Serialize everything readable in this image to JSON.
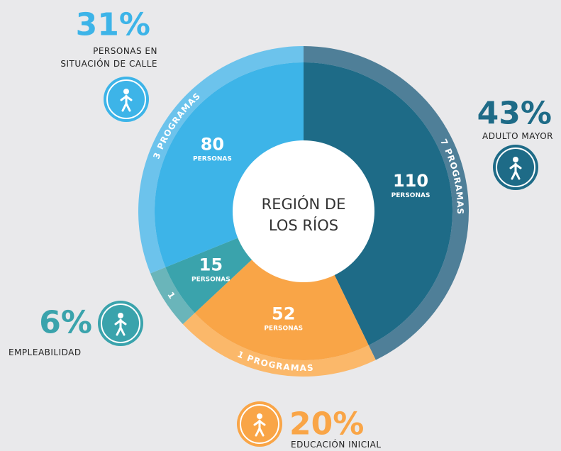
{
  "chart_data": {
    "type": "donut",
    "title": "REGIÓN DE LOS RÍOS",
    "categories": [
      "ADULTO MAYOR",
      "EDUCACIÓN INICIAL",
      "EMPLEABILIDAD",
      "PERSONAS EN SITUACIÓN DE CALLE"
    ],
    "values": [
      110,
      52,
      15,
      80
    ],
    "value_unit": "PERSONAS",
    "percent_labels": [
      "43%",
      "20%",
      "6%",
      "31%"
    ],
    "program_labels": [
      "7 PROGRAMAS",
      "1 PROGRAMAS",
      "1",
      "3 PROGRAMAS"
    ],
    "colors": [
      "#1e6b87",
      "#f9a547",
      "#3aa3ac",
      "#3db4e8"
    ],
    "ring_colors": [
      "#4f7f98",
      "#fbb86a",
      "#6ab5ba",
      "#6cc3ec"
    ]
  }
}
